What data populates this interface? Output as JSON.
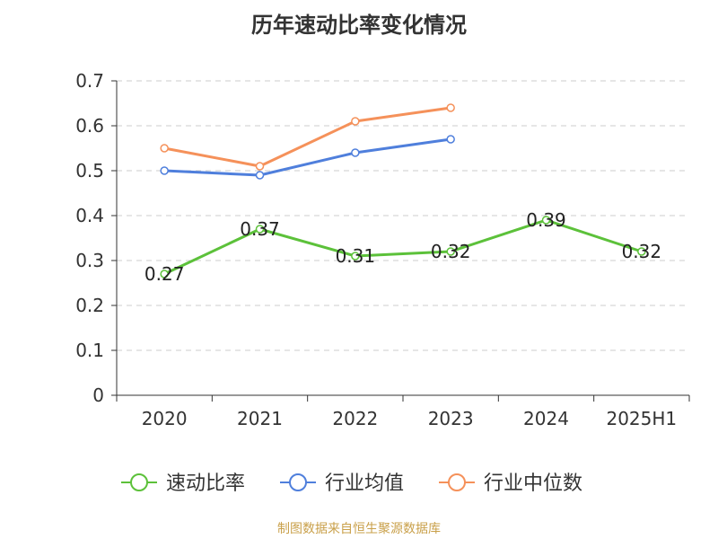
{
  "title": "历年速动比率变化情况",
  "source": "制图数据来自恒生聚源数据库",
  "chart_data": {
    "type": "line",
    "title": "历年速动比率变化情况",
    "categories": [
      "2020",
      "2021",
      "2022",
      "2023",
      "2024",
      "2025H1"
    ],
    "ylim": [
      0,
      0.7
    ],
    "yticks": [
      "0",
      "0.1",
      "0.2",
      "0.3",
      "0.4",
      "0.5",
      "0.6",
      "0.7"
    ],
    "grid": true,
    "legend_position": "bottom",
    "series": [
      {
        "name": "速动比率",
        "color": "#5cc13a",
        "values": [
          0.27,
          0.37,
          0.31,
          0.32,
          0.39,
          0.32
        ],
        "labels": [
          "0.27",
          "0.37",
          "0.31",
          "0.32",
          "0.39",
          "0.32"
        ]
      },
      {
        "name": "行业均值",
        "color": "#4f7fdc",
        "values": [
          0.5,
          0.49,
          0.54,
          0.57,
          null,
          null
        ]
      },
      {
        "name": "行业中位数",
        "color": "#f5915a",
        "values": [
          0.55,
          0.51,
          0.61,
          0.64,
          null,
          null
        ]
      }
    ]
  }
}
